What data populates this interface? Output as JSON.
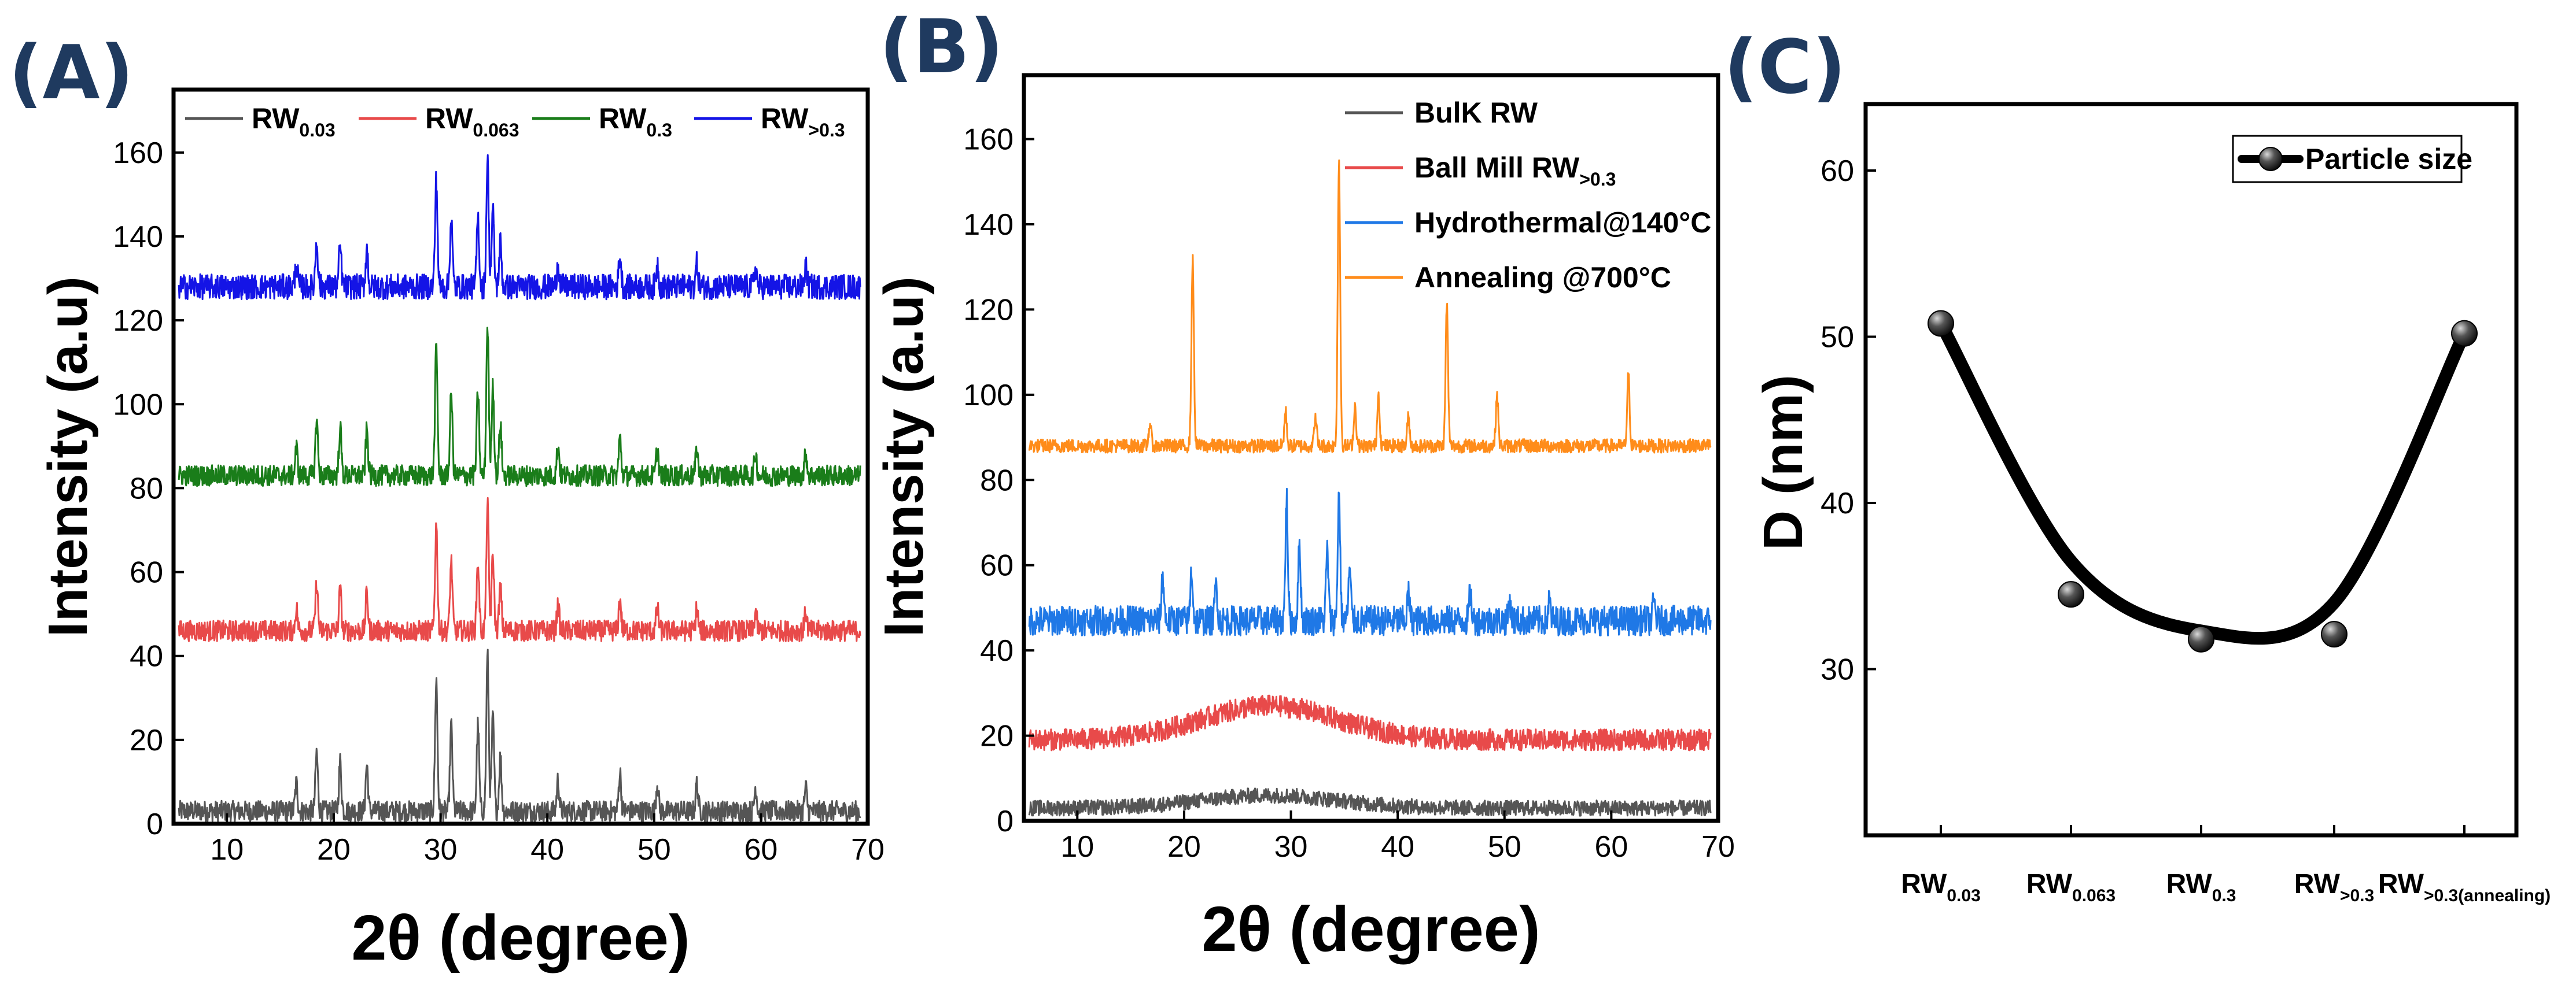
{
  "panels": {
    "a": "(A)",
    "b": "(B)",
    "c": "(C)"
  },
  "chart_data": [
    {
      "type": "line",
      "panel": "(A)",
      "title": "",
      "xlabel": "2θ (degree)",
      "ylabel": "Intensity (a.u)",
      "xlim": [
        5,
        70
      ],
      "ylim": [
        0,
        175
      ],
      "xticks": [
        10,
        20,
        30,
        40,
        50,
        60,
        70
      ],
      "yticks": [
        0,
        20,
        40,
        60,
        80,
        100,
        120,
        140,
        160
      ],
      "legend_position": "top",
      "peaks_2theta": [
        16.5,
        18.4,
        20.6,
        23.1,
        29.6,
        31.0,
        33.5,
        34.4,
        34.9,
        35.6,
        41.0,
        46.8,
        50.3,
        54.0,
        59.5,
        64.2
      ],
      "peak_relative_heights": [
        0.18,
        0.38,
        0.32,
        0.3,
        0.85,
        0.55,
        0.55,
        1.0,
        0.6,
        0.35,
        0.2,
        0.25,
        0.18,
        0.18,
        0.15,
        0.15
      ],
      "series": [
        {
          "name": "RW",
          "sub": "0.03",
          "color": "#555555",
          "baseline": 3,
          "peak_amplitude": 37,
          "noise": 2.5
        },
        {
          "name": "RW",
          "sub": "0.063",
          "color": "#e84a4a",
          "baseline": 46,
          "peak_amplitude": 30,
          "noise": 2.5
        },
        {
          "name": "RW",
          "sub": "0.3",
          "color": "#1a7d1a",
          "baseline": 83,
          "peak_amplitude": 36,
          "noise": 2.5
        },
        {
          "name": "RW",
          "sub": ">0.3",
          "color": "#1414e6",
          "baseline": 128,
          "peak_amplitude": 30,
          "noise": 3
        }
      ]
    },
    {
      "type": "line",
      "panel": "(B)",
      "title": "",
      "xlabel": "2θ (degree)",
      "ylabel": "Intensity (a.u)",
      "xlim": [
        5,
        70
      ],
      "ylim": [
        0,
        175
      ],
      "xticks": [
        10,
        20,
        30,
        40,
        50,
        60,
        70
      ],
      "yticks": [
        0,
        20,
        40,
        60,
        80,
        100,
        120,
        140,
        160
      ],
      "legend_position": "top-right",
      "series": [
        {
          "name": "BulK RW",
          "sub": "",
          "color": "#555555",
          "baseline": 3,
          "hump": 3,
          "hump_center": 28,
          "hump_width": 9,
          "noise": 1.8,
          "peaks_2theta": [],
          "peak_relative_heights": [],
          "peak_amplitude": 0
        },
        {
          "name": "Ball Mill RW",
          "sub": ">0.3",
          "color": "#e84a4a",
          "baseline": 19,
          "hump": 8,
          "hump_center": 28,
          "hump_width": 9,
          "noise": 2.5,
          "peaks_2theta": [],
          "peak_relative_heights": [],
          "peak_amplitude": 0
        },
        {
          "name": "Hydrothermal@140°C",
          "sub": "",
          "color": "#1f78e6",
          "baseline": 47,
          "hump": 0,
          "noise": 3.5,
          "peaks_2theta": [
            18.0,
            20.7,
            23.0,
            29.6,
            30.8,
            33.4,
            34.5,
            35.5,
            41.0,
            46.8,
            50.5,
            54.2,
            64.0
          ],
          "peak_relative_heights": [
            0.35,
            0.4,
            0.3,
            0.95,
            0.6,
            0.55,
            1.0,
            0.4,
            0.2,
            0.22,
            0.15,
            0.15,
            0.15
          ],
          "peak_amplitude": 30
        },
        {
          "name": "Annealing @700°C",
          "sub": "",
          "color": "#ff8c1a",
          "baseline": 88,
          "hump": 0,
          "noise": 1.6,
          "peaks_2theta": [
            16.8,
            20.8,
            29.5,
            32.3,
            34.5,
            36.0,
            38.2,
            41.0,
            44.6,
            49.3,
            61.6
          ],
          "peak_relative_heights": [
            0.08,
            0.65,
            0.12,
            0.1,
            1.0,
            0.14,
            0.18,
            0.1,
            0.5,
            0.18,
            0.25
          ],
          "peak_amplitude": 67
        }
      ]
    },
    {
      "type": "scatter",
      "panel": "(C)",
      "title": "",
      "xlabel": "",
      "ylabel": "D (nm)",
      "ylim": [
        20,
        64
      ],
      "yticks": [
        30,
        40,
        50,
        60
      ],
      "categories": [
        {
          "name": "RW",
          "sub": "0.03"
        },
        {
          "name": "RW",
          "sub": "0.063"
        },
        {
          "name": "RW",
          "sub": "0.3"
        },
        {
          "name": "RW",
          "sub": ">0.3"
        },
        {
          "name": "RW",
          "sub": ">0.3(annealing)"
        }
      ],
      "values": [
        50.8,
        34.5,
        31.8,
        32.1,
        50.2
      ],
      "fit": "smooth curve",
      "legend": "Particle size",
      "legend_position": "top-right"
    }
  ]
}
